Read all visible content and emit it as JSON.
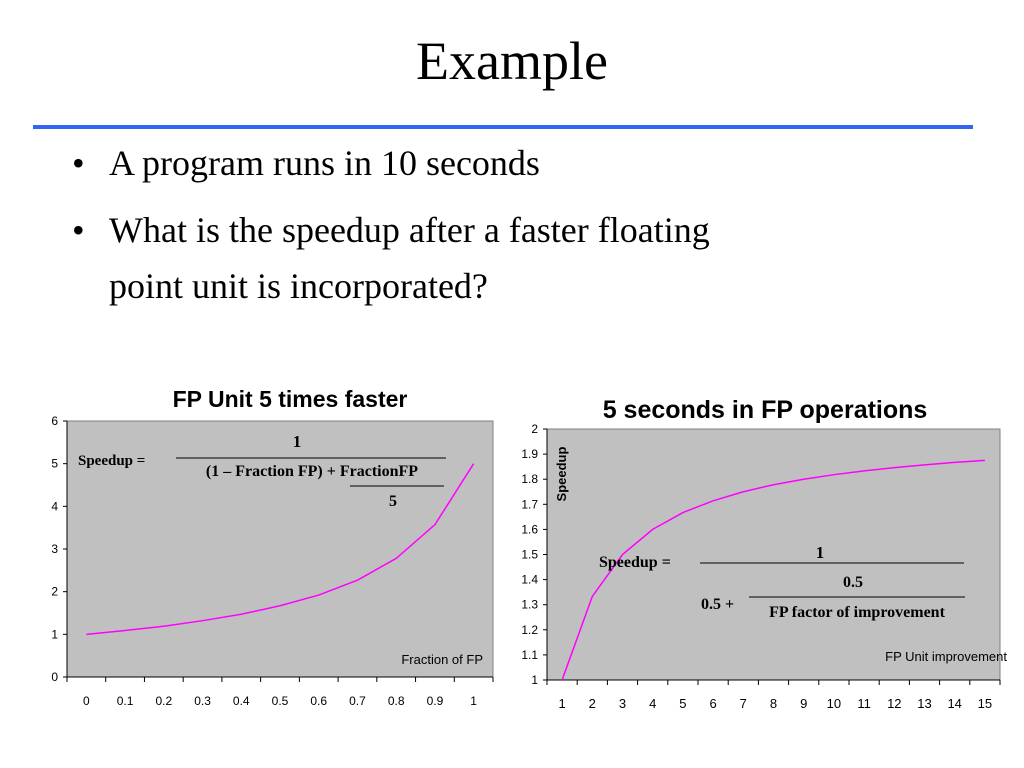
{
  "slide": {
    "title": "Example",
    "accent_color": "#3366ee",
    "bullets": [
      {
        "lines": [
          "A program runs in 10 seconds"
        ]
      },
      {
        "lines": [
          "What is the speedup after a faster floating",
          "point unit is incorporated?"
        ]
      }
    ]
  },
  "chart_data": [
    {
      "type": "line",
      "title": "FP Unit 5 times faster",
      "xlabel": "Fraction of FP",
      "ylabel": "",
      "x": [
        0,
        0.1,
        0.2,
        0.3,
        0.4,
        0.5,
        0.6,
        0.7,
        0.8,
        0.9,
        1
      ],
      "x_tick_labels": [
        "0",
        "0.1",
        "0.2",
        "0.3",
        "0.4",
        "0.5",
        "0.6",
        "0.7",
        "0.8",
        "0.9",
        "1"
      ],
      "y_ticks": [
        "0",
        "1",
        "2",
        "3",
        "4",
        "5",
        "6"
      ],
      "xlim": [
        0,
        1
      ],
      "ylim": [
        0,
        6
      ],
      "grid": false,
      "plot_background": "#c0c0c0",
      "series": [
        {
          "color": "#ff00ff",
          "values": [
            1.0,
            1.09,
            1.19,
            1.32,
            1.47,
            1.67,
            1.92,
            2.27,
            2.78,
            3.57,
            5.0
          ]
        }
      ],
      "formula": {
        "lhs": "Speedup =",
        "numerator": "1",
        "denominator": "(1 – Fraction FP) + FractionFP",
        "sub_denominator": "5"
      }
    },
    {
      "type": "line",
      "title": "5 seconds in FP operations",
      "xlabel": "FP Unit improvement",
      "ylabel": "Speedup",
      "x": [
        1,
        2,
        3,
        4,
        5,
        6,
        7,
        8,
        9,
        10,
        11,
        12,
        13,
        14,
        15
      ],
      "x_tick_labels": [
        "1",
        "2",
        "3",
        "4",
        "5",
        "6",
        "7",
        "8",
        "9",
        "10",
        "11",
        "12",
        "13",
        "14",
        "15"
      ],
      "y_ticks": [
        "1",
        "1.1",
        "1.2",
        "1.3",
        "1.4",
        "1.5",
        "1.6",
        "1.7",
        "1.8",
        "1.9",
        "2"
      ],
      "xlim": [
        1,
        15
      ],
      "ylim": [
        1,
        2
      ],
      "grid": false,
      "plot_background": "#c0c0c0",
      "series": [
        {
          "color": "#ff00ff",
          "values": [
            1.0,
            1.333,
            1.5,
            1.6,
            1.667,
            1.714,
            1.75,
            1.778,
            1.8,
            1.818,
            1.833,
            1.846,
            1.857,
            1.867,
            1.875
          ]
        }
      ],
      "formula": {
        "lhs": "Speedup =",
        "numerator": "1",
        "inner_numerator": "0.5",
        "inner_lhs": "0.5 +",
        "inner_denominator": "FP factor of improvement"
      }
    }
  ]
}
